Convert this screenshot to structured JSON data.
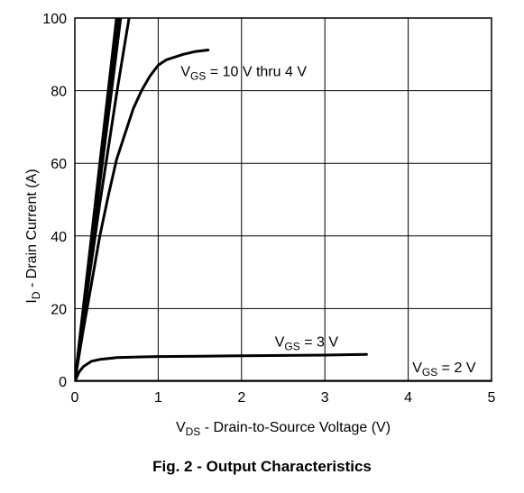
{
  "caption": "Fig. 2 - Output Characteristics",
  "chart_data": {
    "type": "line",
    "title": "",
    "xlabel": {
      "main": "V",
      "sub": "DS",
      "rest": " - Drain-to-Source Voltage (V)"
    },
    "ylabel": {
      "main": "I",
      "sub": "D",
      "rest": " - Drain Current (A)"
    },
    "xlim": [
      0,
      5
    ],
    "ylim": [
      0,
      100
    ],
    "xticks": [
      0,
      1,
      2,
      3,
      4,
      5
    ],
    "yticks": [
      0,
      20,
      40,
      60,
      80,
      100
    ],
    "grid": true,
    "annotations": [
      {
        "id": "vgs-10-4",
        "main": "V",
        "sub": "GS",
        "rest": " = 10 V thru 4 V",
        "x": 1.27,
        "y": 84
      },
      {
        "id": "vgs-3",
        "main": "V",
        "sub": "GS",
        "rest": " = 3 V",
        "x": 2.4,
        "y": 9.5
      },
      {
        "id": "vgs-2",
        "main": "V",
        "sub": "GS",
        "rest": " = 2 V",
        "x": 4.05,
        "y": 2.5
      }
    ],
    "series": [
      {
        "x": [
          0,
          0.1,
          0.2,
          0.3,
          0.4,
          0.5
        ],
        "y": [
          0,
          20,
          40,
          60,
          80,
          100
        ]
      },
      {
        "x": [
          0,
          0.105,
          0.21,
          0.315,
          0.42,
          0.525
        ],
        "y": [
          0,
          20,
          40,
          60,
          80,
          100
        ]
      },
      {
        "x": [
          0,
          0.11,
          0.22,
          0.33,
          0.44,
          0.55
        ],
        "y": [
          0,
          20,
          40,
          60,
          80,
          100
        ]
      },
      {
        "x": [
          0,
          0.1,
          0.2,
          0.3,
          0.4,
          0.5,
          0.6,
          0.65
        ],
        "y": [
          0,
          17,
          33,
          49,
          64,
          79,
          93,
          100
        ]
      },
      {
        "x": [
          0,
          0.05,
          0.1,
          0.2,
          0.3,
          0.4,
          0.5,
          0.6,
          0.7,
          0.8,
          0.9,
          1.0,
          1.1,
          1.3,
          1.45,
          1.6
        ],
        "y": [
          0,
          7,
          14,
          27,
          40,
          51,
          61,
          68,
          75,
          80,
          84,
          87,
          88.5,
          90,
          90.8,
          91.2
        ]
      },
      {
        "x": [
          0,
          0.05,
          0.1,
          0.2,
          0.3,
          0.5,
          0.8,
          1.0,
          1.5,
          2.0,
          2.5,
          3.0,
          3.5
        ],
        "y": [
          0,
          2.5,
          4,
          5.5,
          6,
          6.5,
          6.7,
          6.8,
          6.9,
          7.0,
          7.1,
          7.2,
          7.4
        ]
      },
      {
        "x": [
          0,
          1,
          2,
          3,
          4,
          5
        ],
        "y": [
          0,
          0,
          0,
          0,
          0,
          0
        ]
      }
    ]
  }
}
